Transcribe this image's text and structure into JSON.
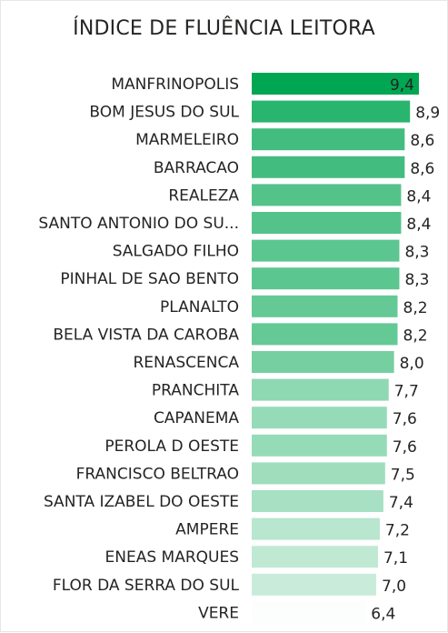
{
  "chart_data": {
    "type": "bar",
    "orientation": "horizontal",
    "title": "ÍNDICE DE FLUÊNCIA LEITORA",
    "categories": [
      "MANFRINOPOLIS",
      "BOM JESUS DO SUL",
      "MARMELEIRO",
      "BARRACAO",
      "REALEZA",
      "SANTO ANTONIO DO SU...",
      "SALGADO FILHO",
      "PINHAL DE SAO BENTO",
      "PLANALTO",
      "BELA VISTA DA CAROBA",
      "RENASCENCA",
      "PRANCHITA",
      "CAPANEMA",
      "PEROLA D OESTE",
      "FRANCISCO BELTRAO",
      "SANTA IZABEL DO OESTE",
      "AMPERE",
      "ENEAS MARQUES",
      "FLOR DA SERRA DO SUL",
      "VERE"
    ],
    "values": [
      9.4,
      8.9,
      8.6,
      8.6,
      8.4,
      8.4,
      8.3,
      8.3,
      8.2,
      8.2,
      8.0,
      7.7,
      7.6,
      7.6,
      7.5,
      7.4,
      7.2,
      7.1,
      7.0,
      6.4
    ],
    "value_labels": [
      "9,4",
      "8,9",
      "8,6",
      "8,6",
      "8,4",
      "8,4",
      "8,3",
      "8,3",
      "8,2",
      "8,2",
      "8,0",
      "7,7",
      "7,6",
      "7,6",
      "7,5",
      "7,4",
      "7,2",
      "7,1",
      "7,0",
      "6,4"
    ],
    "xlim": [
      0,
      9.4
    ],
    "grid": false,
    "color_scale": {
      "min_color": "#ffffff",
      "max_color": "#00a651"
    }
  }
}
